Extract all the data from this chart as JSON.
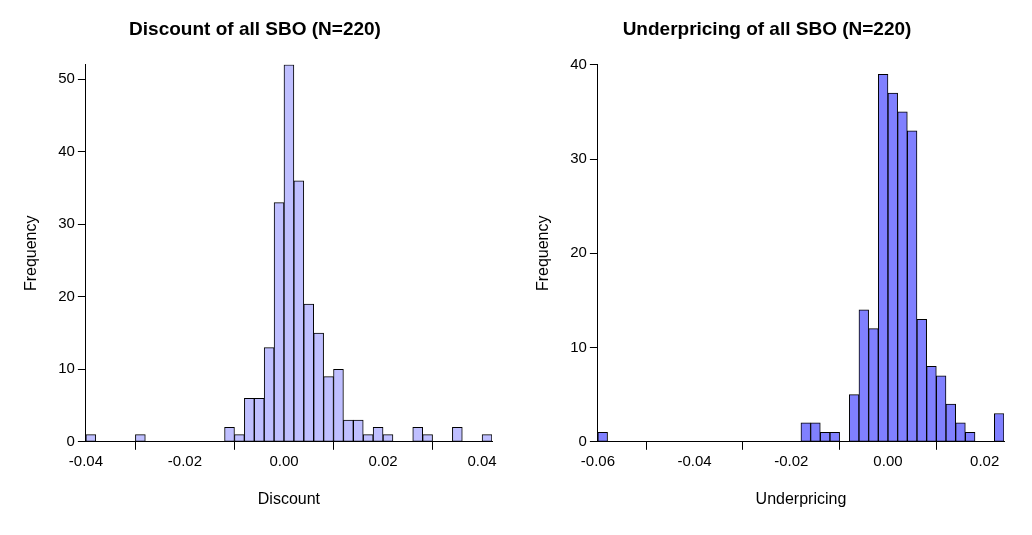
{
  "chart_data": [
    {
      "type": "histogram",
      "title": "Discount of all SBO (N=220)",
      "xlabel": "Discount",
      "ylabel": "Frequency",
      "color": "#bfbfff",
      "bins": [
        -0.04,
        -0.038,
        -0.036,
        -0.034,
        -0.032,
        -0.03,
        -0.028,
        -0.026,
        -0.024,
        -0.022,
        -0.02,
        -0.018,
        -0.016,
        -0.014,
        -0.012,
        -0.01,
        -0.008,
        -0.006,
        -0.004,
        -0.002,
        0,
        0.002,
        0.004,
        0.006,
        0.008,
        0.01,
        0.012,
        0.014,
        0.016,
        0.018,
        0.02,
        0.022,
        0.024,
        0.026,
        0.028,
        0.03,
        0.032,
        0.034,
        0.036,
        0.038,
        0.04,
        0.042
      ],
      "values": [
        1,
        0,
        0,
        0,
        0,
        1,
        0,
        0,
        0,
        0,
        0,
        0,
        0,
        0,
        2,
        1,
        6,
        6,
        13,
        33,
        52,
        36,
        19,
        15,
        9,
        10,
        3,
        3,
        1,
        2,
        1,
        0,
        0,
        2,
        1,
        0,
        0,
        2,
        0,
        0,
        1
      ],
      "xlim": [
        -0.04,
        0.042
      ],
      "xticks": [
        {
          "value": -0.04,
          "label": "-0.04"
        },
        {
          "value": -0.02,
          "label": "-0.02"
        },
        {
          "value": 0,
          "label": "0.00"
        },
        {
          "value": 0.02,
          "label": "0.02"
        },
        {
          "value": 0.04,
          "label": "0.04"
        }
      ],
      "ylim": [
        0,
        52
      ],
      "yticks": [
        0,
        10,
        20,
        30,
        40,
        50
      ],
      "grid": false,
      "legend": false
    },
    {
      "type": "histogram",
      "title": "Underpricing of all SBO (N=220)",
      "xlabel": "Underpricing",
      "ylabel": "Frequency",
      "color": "#8080ff",
      "bins": [
        -0.06,
        -0.058,
        -0.056,
        -0.054,
        -0.052,
        -0.05,
        -0.048,
        -0.046,
        -0.044,
        -0.042,
        -0.04,
        -0.038,
        -0.036,
        -0.034,
        -0.032,
        -0.03,
        -0.028,
        -0.026,
        -0.024,
        -0.022,
        -0.02,
        -0.018,
        -0.016,
        -0.014,
        -0.012,
        -0.01,
        -0.008,
        -0.006,
        -0.004,
        -0.002,
        0,
        0.002,
        0.004,
        0.006,
        0.008,
        0.01,
        0.012,
        0.014,
        0.016,
        0.018,
        0.02,
        0.022,
        0.024
      ],
      "values": [
        1,
        0,
        0,
        0,
        0,
        0,
        0,
        0,
        0,
        0,
        0,
        0,
        0,
        0,
        0,
        0,
        0,
        0,
        0,
        0,
        0,
        2,
        2,
        1,
        1,
        0,
        5,
        14,
        12,
        39,
        37,
        35,
        33,
        13,
        8,
        7,
        4,
        2,
        1,
        0,
        0,
        3
      ],
      "xlim": [
        -0.06,
        0.024
      ],
      "xticks": [
        {
          "value": -0.06,
          "label": "-0.06"
        },
        {
          "value": -0.04,
          "label": "-0.04"
        },
        {
          "value": -0.02,
          "label": "-0.02"
        },
        {
          "value": 0,
          "label": "0.00"
        },
        {
          "value": 0.02,
          "label": "0.02"
        }
      ],
      "ylim": [
        0,
        40
      ],
      "yticks": [
        0,
        10,
        20,
        30,
        40
      ],
      "grid": false,
      "legend": false
    }
  ]
}
